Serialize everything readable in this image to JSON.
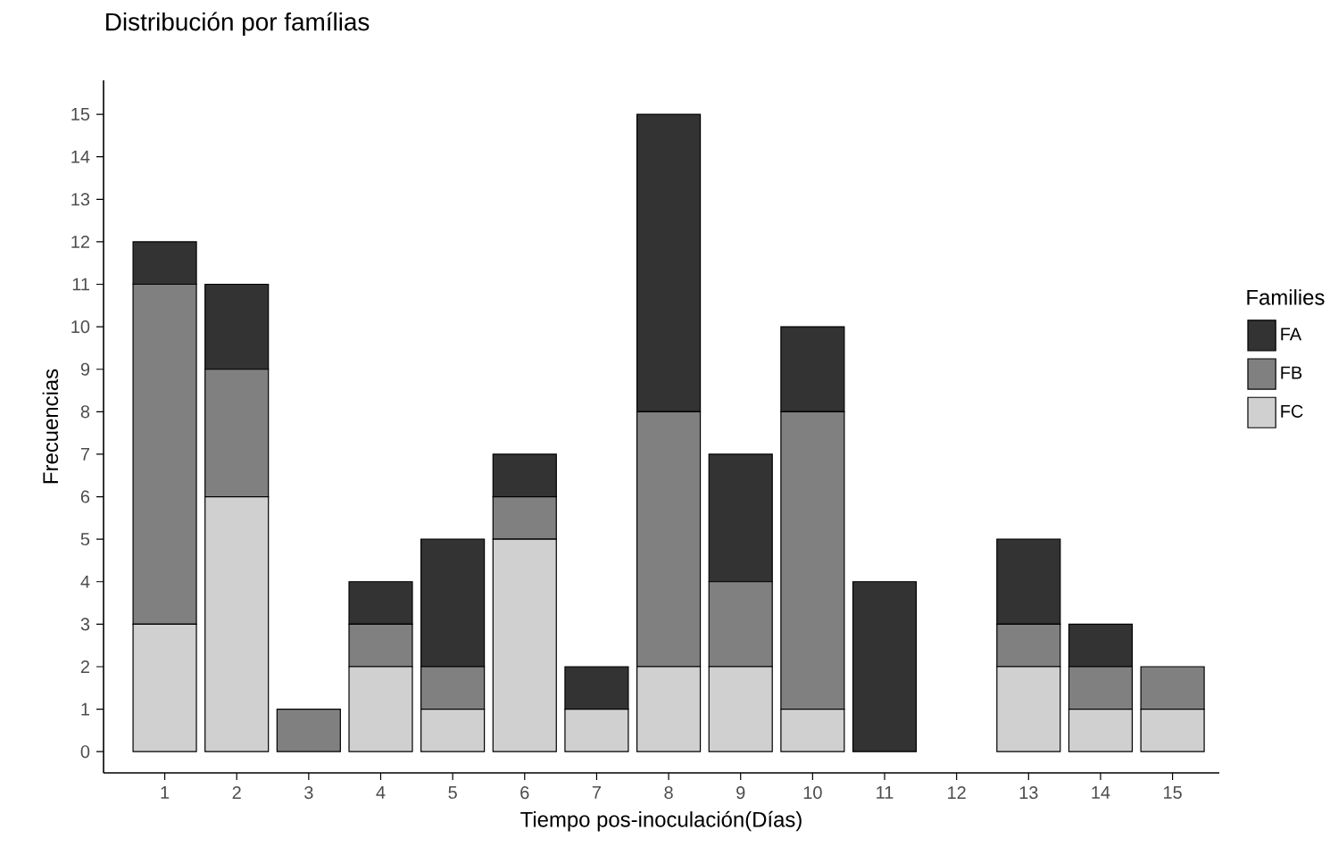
{
  "chart_data": {
    "type": "bar",
    "stacked": true,
    "title": "Distribución por famílias",
    "xlabel": "Tiempo pos-inoculación(Días)",
    "ylabel": "Frecuencias",
    "legend_title": "Families",
    "legend": "right",
    "grid": false,
    "categories": [
      "1",
      "2",
      "3",
      "4",
      "5",
      "6",
      "7",
      "8",
      "9",
      "10",
      "11",
      "12",
      "13",
      "14",
      "15"
    ],
    "ylim": [
      -0.5,
      15.8
    ],
    "yticks": [
      0,
      1,
      2,
      3,
      4,
      5,
      6,
      7,
      8,
      9,
      10,
      11,
      12,
      13,
      14,
      15
    ],
    "series": [
      {
        "name": "FC",
        "color": "#d0d0d0",
        "values": [
          3,
          6,
          0,
          2,
          1,
          5,
          1,
          2,
          2,
          1,
          0,
          0,
          2,
          1,
          1
        ]
      },
      {
        "name": "FB",
        "color": "#808080",
        "values": [
          8,
          3,
          1,
          1,
          1,
          1,
          0,
          6,
          2,
          7,
          0,
          0,
          1,
          1,
          1
        ]
      },
      {
        "name": "FA",
        "color": "#333333",
        "values": [
          1,
          2,
          0,
          1,
          3,
          1,
          1,
          7,
          3,
          2,
          4,
          0,
          2,
          1,
          0
        ]
      }
    ]
  }
}
